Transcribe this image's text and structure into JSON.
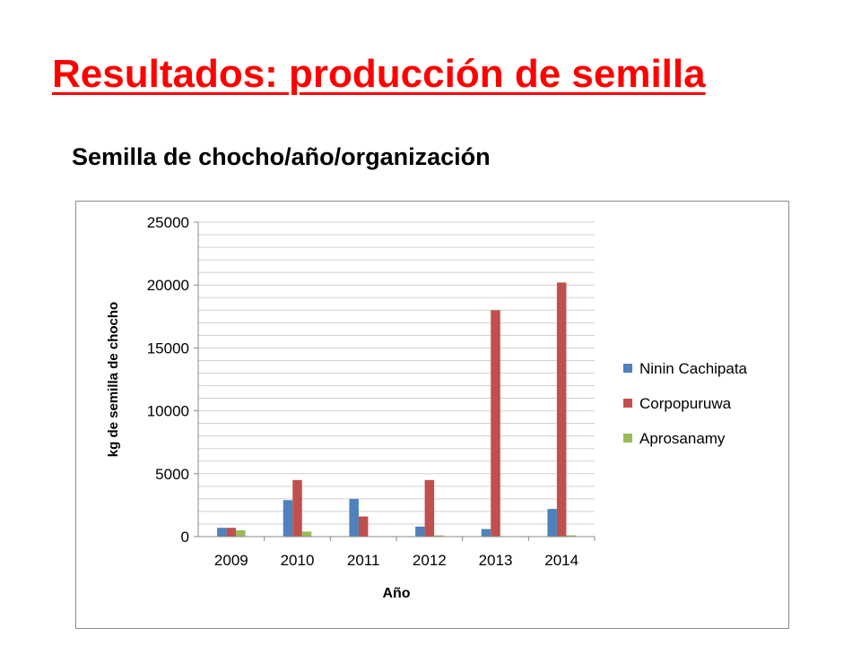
{
  "slide": {
    "title": "Resultados: producción de semilla",
    "subtitle": "Semilla de chocho/año/organización"
  },
  "colors": {
    "title": "#ff0000",
    "series": [
      "#4f81bd",
      "#c0504d",
      "#9bbb59"
    ]
  },
  "chart_data": {
    "type": "bar",
    "title": "",
    "xlabel": "Año",
    "ylabel": "kg de semilla de chocho",
    "categories": [
      "2009",
      "2010",
      "2011",
      "2012",
      "2013",
      "2014"
    ],
    "ylim": [
      0,
      25000
    ],
    "yticks": [
      "0",
      "5000",
      "10000",
      "15000",
      "20000",
      "25000"
    ],
    "grid": true,
    "legend_position": "right",
    "series": [
      {
        "name": "Ninin Cachipata",
        "values": [
          700,
          2900,
          3000,
          800,
          600,
          2200
        ]
      },
      {
        "name": "Corpopuruwa",
        "values": [
          700,
          4500,
          1600,
          4500,
          18000,
          20200
        ]
      },
      {
        "name": "Aprosanamy",
        "values": [
          500,
          400,
          0,
          100,
          0,
          100
        ]
      }
    ]
  }
}
